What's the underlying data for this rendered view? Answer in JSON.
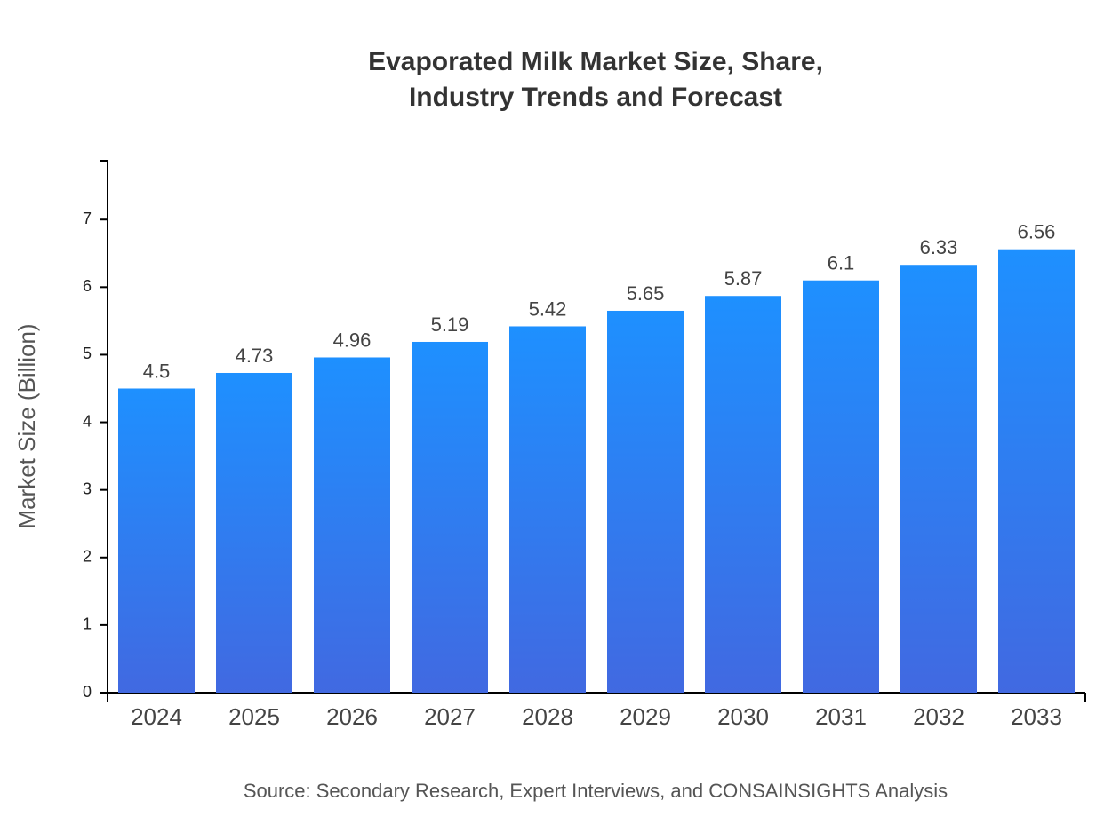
{
  "chart_data": {
    "type": "bar",
    "title": "Evaporated Milk Market Size, Share, Industry Trends and Forecast",
    "y_label": "Market Size (Billion)",
    "source": "Source: Secondary Research, Expert Interviews, and CONSAINSIGHTS Analysis",
    "categories": [
      "2024",
      "2025",
      "2026",
      "2027",
      "2028",
      "2029",
      "2030",
      "2031",
      "2032",
      "2033"
    ],
    "values": [
      4.5,
      4.73,
      4.96,
      5.19,
      5.42,
      5.65,
      5.87,
      6.1,
      6.33,
      6.56
    ],
    "color": [
      "#1e90ff",
      "#4169e1"
    ],
    "ylim": [
      0,
      7.87
    ],
    "yticks": [
      0,
      1,
      2,
      3,
      4,
      5,
      6,
      7
    ],
    "grid": false
  }
}
